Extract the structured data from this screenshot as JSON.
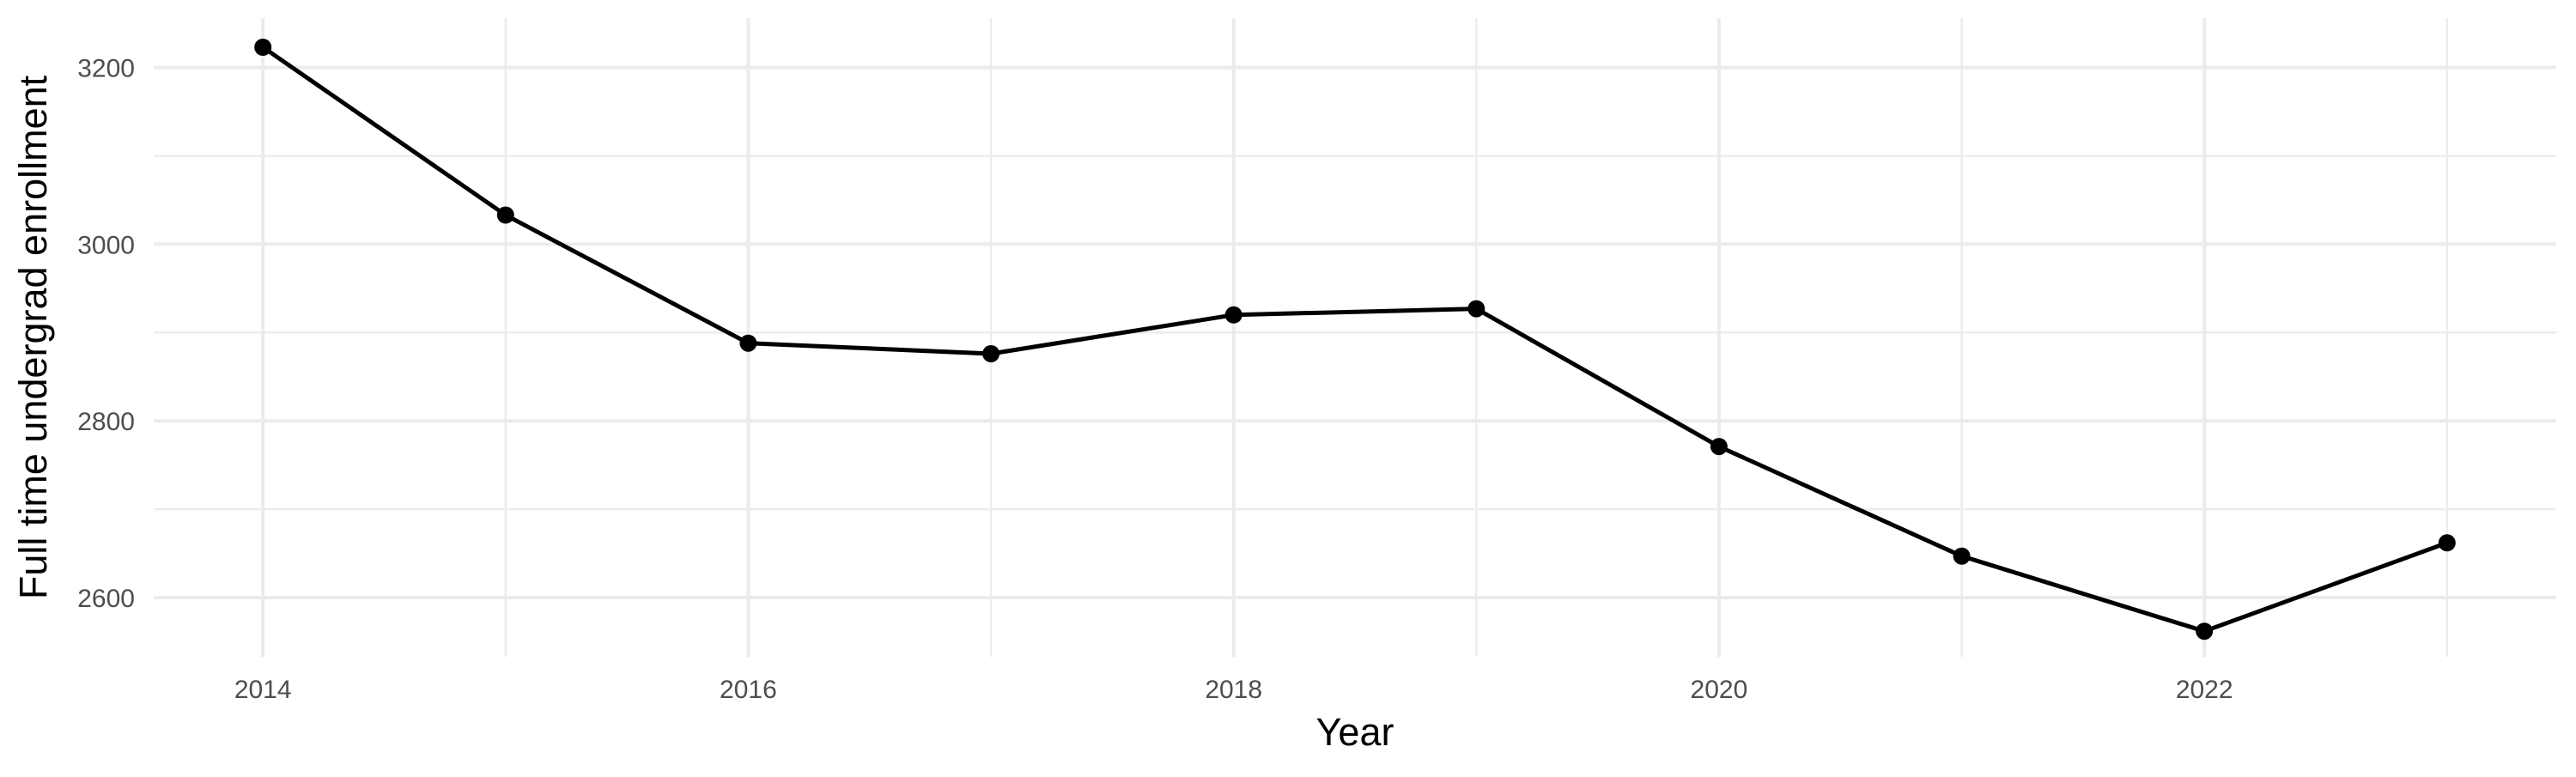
{
  "page": {
    "background": "#FFFFFF"
  },
  "chart_data": {
    "type": "line",
    "title": "",
    "xlabel": "Year",
    "ylabel": "Full time undergrad enrollment",
    "x": [
      2014,
      2015,
      2016,
      2017,
      2018,
      2019,
      2020,
      2021,
      2022,
      2023
    ],
    "series": [
      {
        "name": "Full time undergrad enrollment",
        "values": [
          3223,
          3033,
          2888,
          2876,
          2920,
          2927,
          2771,
          2647,
          2562,
          2662
        ]
      }
    ],
    "x_major_ticks": [
      2014,
      2016,
      2018,
      2020,
      2022
    ],
    "x_minor_gridlines": [
      2015,
      2017,
      2019,
      2021,
      2023
    ],
    "y_major_ticks": [
      2600,
      2800,
      3000,
      3200
    ],
    "y_minor_gridlines": [
      2700,
      2900,
      3100
    ],
    "xlim": [
      2013.55,
      2023.45
    ],
    "ylim": [
      2533,
      3256
    ],
    "grid": true,
    "legend": "none",
    "marker": "point",
    "style": {
      "line_color": "#000000",
      "point_color": "#000000",
      "line_width": 5,
      "point_radius": 10,
      "major_grid_color": "#EBEBEB",
      "minor_grid_color": "#ECECEC",
      "major_grid_width": 4,
      "minor_grid_width": 2.4,
      "tick_label_color": "#4D4D4D",
      "axis_title_color": "#000000",
      "background": "#FFFFFF"
    }
  }
}
